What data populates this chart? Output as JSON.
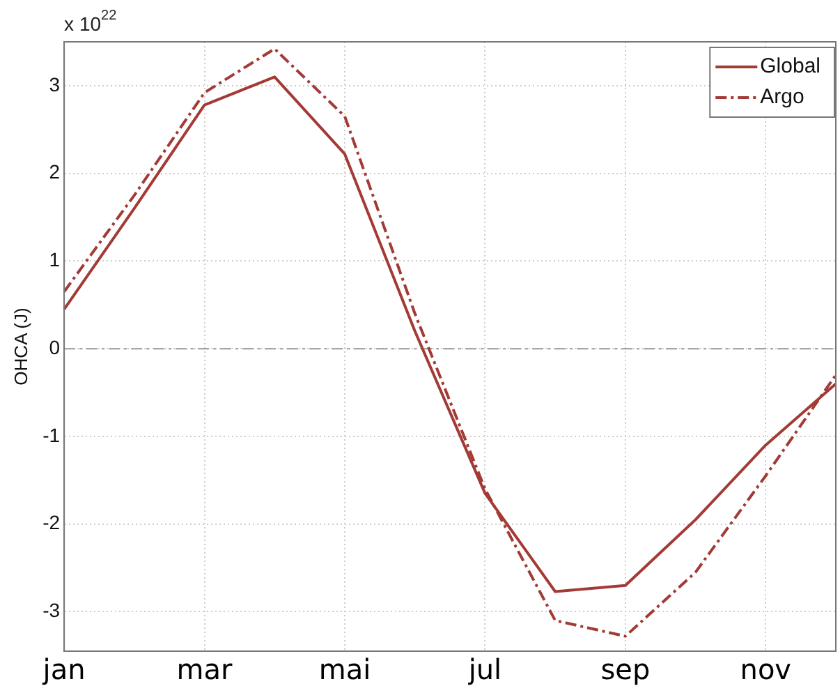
{
  "chart_data": {
    "type": "line",
    "ylabel": "OHCA (J)",
    "annotations": [
      "x 10$^{22}$"
    ],
    "categories": [
      "jan",
      null,
      "mar",
      null,
      "mai",
      null,
      "jul",
      null,
      "sep",
      null,
      "nov",
      null
    ],
    "series": [
      {
        "name": "Global",
        "color": "#a33a35",
        "line_style": "solid",
        "values": [
          0.45,
          1.6,
          2.78,
          3.1,
          2.22,
          0.2,
          -1.65,
          -2.77,
          -2.7,
          -1.95,
          -1.1,
          -0.4
        ]
      },
      {
        "name": "Argo",
        "color": "#a33a35",
        "line_style": "dashed",
        "values": [
          0.65,
          1.75,
          2.92,
          3.42,
          2.65,
          0.4,
          -1.6,
          -3.1,
          -3.28,
          -2.55,
          -1.45,
          -0.3
        ]
      }
    ],
    "ylim": [
      -3.45,
      3.5
    ],
    "yticks": [
      -3,
      -2,
      -1,
      0,
      1,
      2,
      3
    ],
    "ref_lines": [
      {
        "axis": "y",
        "value": 0,
        "color": "#999999",
        "line_style": "dashed"
      }
    ],
    "grid": true,
    "legend": "top right",
    "marker": "none"
  }
}
